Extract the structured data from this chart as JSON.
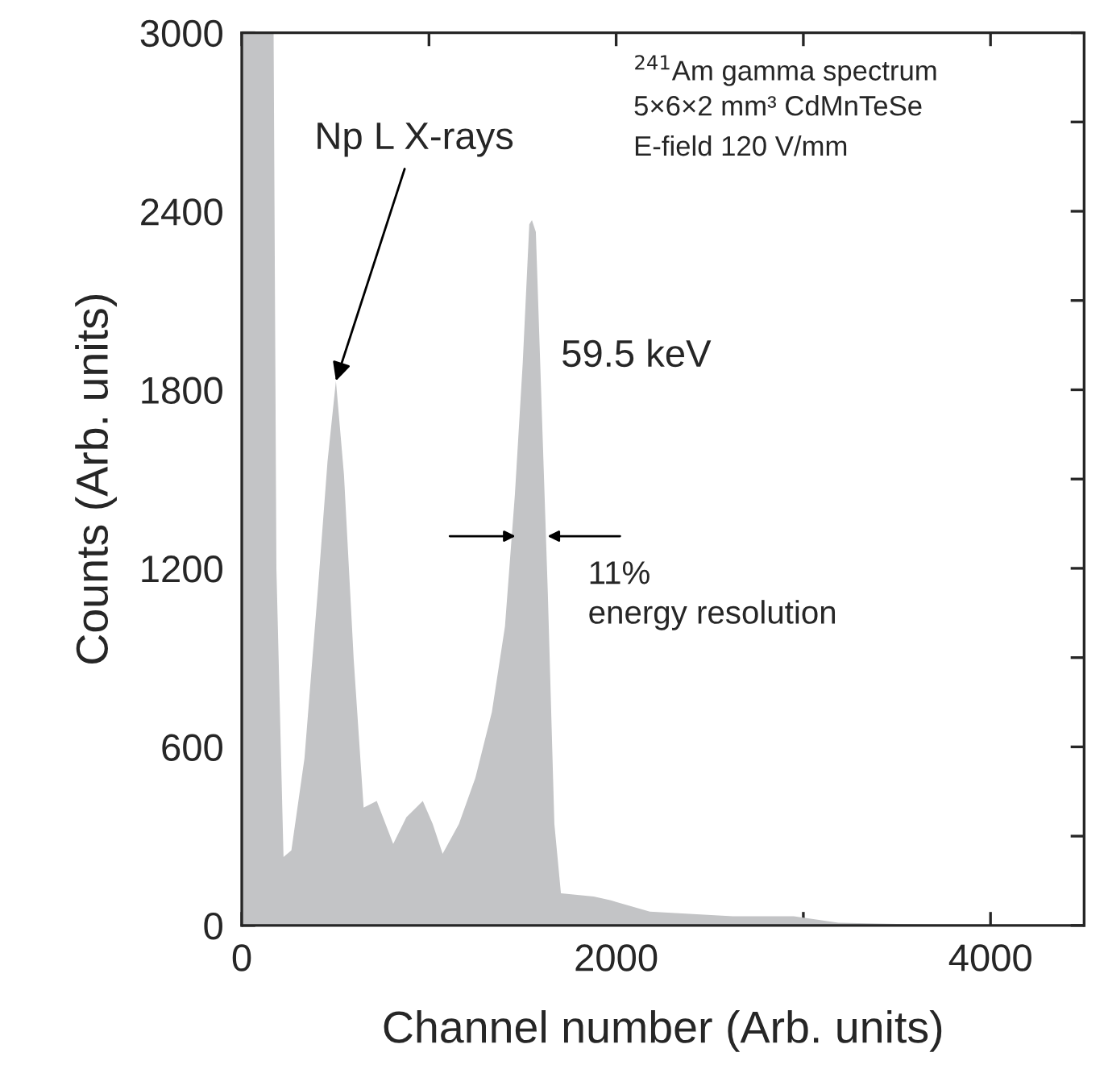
{
  "chart_data": {
    "type": "area",
    "xlabel": "Channel number (Arb. units)",
    "ylabel": "Counts (Arb. units)",
    "x": [
      0,
      20,
      100,
      170,
      185,
      223,
      265,
      335,
      405,
      458,
      503,
      546,
      598,
      651,
      721,
      809,
      879,
      967,
      1020,
      1073,
      1160,
      1248,
      1336,
      1406,
      1459,
      1501,
      1536,
      1550,
      1571,
      1600,
      1635,
      1670,
      1705,
      1880,
      1972,
      2180,
      2623,
      2949,
      3187,
      3661,
      4500
    ],
    "series": [
      {
        "color": "#c3c4c6",
        "values": [
          3000,
          3000,
          3000,
          3000,
          1200,
          230,
          252,
          562,
          1116,
          1559,
          1830,
          1514,
          894,
          396,
          418,
          274,
          363,
          418,
          341,
          241,
          341,
          496,
          717,
          1005,
          1448,
          1891,
          2356,
          2370,
          2330,
          1780,
          1116,
          341,
          108,
          97,
          84,
          46,
          31,
          31,
          9,
          3,
          0
        ]
      }
    ],
    "xlim": [
      0,
      4500
    ],
    "xticks": [
      0,
      {
        "value": 1000,
        "label": null
      },
      2000,
      {
        "value": 3000,
        "label": null
      },
      4000
    ],
    "ylim": [
      0,
      3000
    ],
    "yticks": [
      0,
      {
        "value": 300,
        "label": null
      },
      600,
      {
        "value": 900,
        "label": null
      },
      1200,
      {
        "value": 1500,
        "label": null
      },
      1800,
      {
        "value": 2100,
        "label": null
      },
      2400,
      {
        "value": 2700,
        "label": null
      },
      3000
    ],
    "grid": false,
    "legend": false,
    "annotations": [
      {
        "text": "Np L X-rays",
        "x": 503,
        "y": 1830
      },
      "59.5 keV",
      "11%\nenergy resolution",
      "$^{241}$Am gamma spectrum",
      "5×6×2 mm³ CdMnTeSe",
      "E-field 120 V/mm"
    ]
  }
}
